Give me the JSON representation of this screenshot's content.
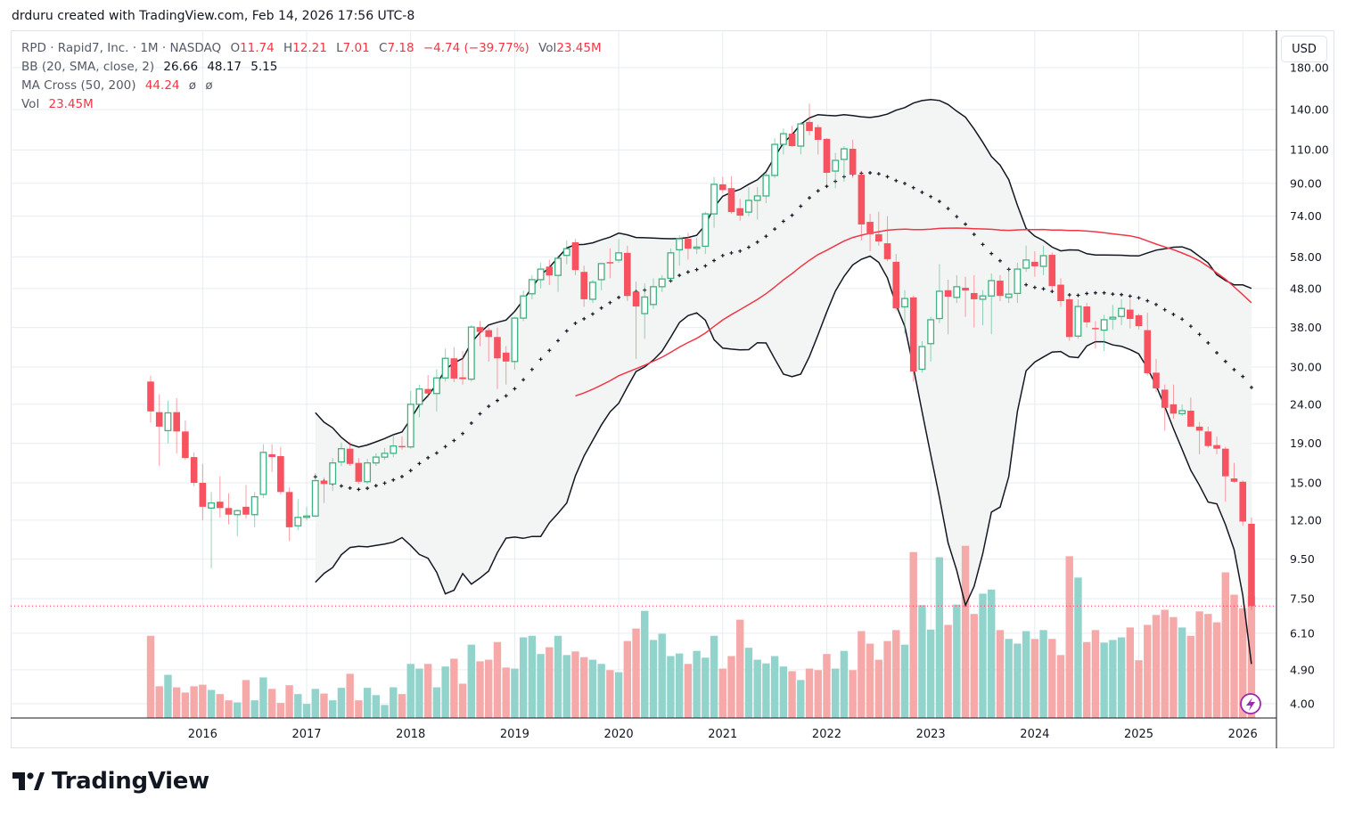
{
  "credit": "drduru created with TradingView.com, Feb 14, 2026 17:56 UTC-8",
  "currency_button": "USD",
  "logo_text": "TradingView",
  "legend": {
    "symbol": "RPD · Rapid7, Inc. · 1M · NASDAQ",
    "o_label": "O",
    "o_value": "11.74",
    "h_label": "H",
    "h_value": "12.21",
    "l_label": "L",
    "l_value": "7.01",
    "c_label": "C",
    "c_value": "7.18",
    "change": "−4.74 (−39.77%)",
    "vol_label": "Vol",
    "vol_value": "23.45M",
    "bb_label": "BB (20, SMA, close, 2)",
    "bb_values": [
      "26.66",
      "48.17",
      "5.15"
    ],
    "ma_label": "MA Cross (50, 200)",
    "ma_values": [
      "44.24",
      "ø",
      "ø"
    ],
    "vol_row_label": "Vol",
    "vol_row_value": "23.45M"
  },
  "colors": {
    "up": "#3fb27f",
    "down": "#f7525f",
    "vol_up": "#92d3cc",
    "vol_down": "#f6a9a9",
    "bb": "#131722",
    "bb_fill": "#f3f4f4",
    "ma50": "#f23645",
    "grid": "#e6ecf2"
  },
  "chart_data": {
    "type": "candlestick",
    "interval": "1M",
    "scale": "log",
    "ylim": [
      4.0,
      180.0
    ],
    "y_ticks": [
      "4.00",
      "4.90",
      "6.10",
      "7.50",
      "9.50",
      "12.00",
      "15.00",
      "19.00",
      "24.00",
      "30.00",
      "38.00",
      "48.00",
      "58.00",
      "74.00",
      "90.00",
      "110.00",
      "140.00",
      "180.00"
    ],
    "x_ticks": [
      {
        "label": "2016",
        "index": 6
      },
      {
        "label": "2017",
        "index": 18
      },
      {
        "label": "2018",
        "index": 30
      },
      {
        "label": "2019",
        "index": 42
      },
      {
        "label": "2020",
        "index": 54
      },
      {
        "label": "2021",
        "index": 66
      },
      {
        "label": "2022",
        "index": 78
      },
      {
        "label": "2023",
        "index": 90
      },
      {
        "label": "2024",
        "index": 102
      },
      {
        "label": "2025",
        "index": 114
      },
      {
        "label": "2026",
        "index": 126
      }
    ],
    "last_close": 7.18,
    "bb_period": 20,
    "bb_mult": 2,
    "ma_period": 50,
    "ohlc": [
      [
        27.5,
        28.5,
        21.5,
        23.0
      ],
      [
        22.9,
        25.5,
        16.6,
        21.0
      ],
      [
        20.5,
        24.5,
        19.0,
        22.8
      ],
      [
        22.9,
        24.9,
        17.9,
        20.4
      ],
      [
        20.4,
        21.8,
        17.2,
        17.4
      ],
      [
        17.5,
        18.0,
        14.7,
        15.0
      ],
      [
        15.0,
        16.8,
        12.0,
        13.0
      ],
      [
        12.9,
        14.2,
        9.0,
        13.3
      ],
      [
        13.4,
        15.6,
        12.2,
        12.9
      ],
      [
        12.9,
        14.1,
        11.7,
        12.4
      ],
      [
        12.4,
        12.8,
        10.9,
        12.7
      ],
      [
        13.0,
        14.8,
        12.1,
        12.4
      ],
      [
        12.4,
        14.2,
        11.5,
        13.8
      ],
      [
        14.0,
        18.9,
        13.7,
        18.0
      ],
      [
        17.8,
        18.9,
        16.0,
        17.5
      ],
      [
        17.6,
        18.6,
        14.0,
        14.2
      ],
      [
        14.2,
        14.6,
        10.6,
        11.5
      ],
      [
        11.6,
        13.6,
        11.3,
        12.2
      ],
      [
        12.2,
        13.0,
        12.0,
        12.3
      ],
      [
        12.3,
        15.9,
        12.2,
        15.2
      ],
      [
        15.2,
        15.5,
        13.3,
        14.9
      ],
      [
        14.9,
        17.4,
        14.3,
        16.9
      ],
      [
        17.0,
        19.1,
        16.6,
        18.4
      ],
      [
        18.4,
        19.2,
        16.6,
        16.8
      ],
      [
        16.9,
        17.4,
        14.9,
        15.1
      ],
      [
        15.1,
        17.3,
        14.9,
        16.9
      ],
      [
        16.9,
        17.9,
        16.6,
        17.5
      ],
      [
        17.5,
        18.5,
        17.2,
        17.9
      ],
      [
        17.9,
        20.0,
        17.5,
        18.7
      ],
      [
        18.7,
        19.8,
        18.3,
        18.6
      ],
      [
        18.6,
        26.0,
        18.4,
        24.0
      ],
      [
        24.0,
        27.0,
        22.2,
        26.3
      ],
      [
        26.3,
        28.6,
        25.0,
        25.6
      ],
      [
        25.6,
        29.6,
        23.0,
        28.1
      ],
      [
        28.1,
        33.5,
        27.5,
        31.6
      ],
      [
        31.6,
        33.8,
        27.4,
        28.0
      ],
      [
        28.2,
        33.0,
        27.0,
        27.9
      ],
      [
        27.9,
        38.5,
        27.5,
        38.1
      ],
      [
        38.1,
        39.5,
        34.0,
        37.0
      ],
      [
        37.4,
        38.0,
        31.0,
        35.9
      ],
      [
        35.9,
        38.0,
        26.3,
        31.6
      ],
      [
        32.7,
        34.0,
        27.0,
        31.0
      ],
      [
        31.0,
        40.5,
        29.5,
        40.2
      ],
      [
        40.2,
        47.4,
        39.5,
        45.9
      ],
      [
        46.5,
        52.0,
        45.0,
        50.6
      ],
      [
        50.6,
        56.0,
        48.0,
        53.9
      ],
      [
        54.7,
        57.0,
        49.0,
        51.9
      ],
      [
        51.9,
        58.5,
        47.0,
        57.5
      ],
      [
        58.5,
        64.0,
        55.5,
        60.9
      ],
      [
        63.3,
        64.5,
        52.0,
        53.6
      ],
      [
        53.0,
        55.0,
        43.0,
        45.0
      ],
      [
        45.0,
        50.5,
        44.0,
        49.8
      ],
      [
        50.6,
        56.0,
        47.5,
        55.7
      ],
      [
        56.2,
        61.0,
        51.0,
        56.0
      ],
      [
        56.9,
        64.5,
        56.0,
        59.4
      ],
      [
        59.4,
        62.0,
        44.5,
        45.9
      ],
      [
        47.1,
        50.0,
        31.5,
        43.1
      ],
      [
        41.3,
        49.5,
        35.5,
        45.6
      ],
      [
        43.6,
        51.0,
        42.5,
        48.5
      ],
      [
        48.5,
        52.0,
        47.0,
        50.8
      ],
      [
        51.0,
        61.0,
        50.0,
        59.4
      ],
      [
        60.5,
        66.0,
        55.0,
        64.6
      ],
      [
        64.6,
        67.0,
        57.0,
        60.9
      ],
      [
        61.0,
        65.0,
        59.0,
        61.5
      ],
      [
        61.8,
        76.0,
        59.0,
        75.0
      ],
      [
        75.0,
        93.5,
        69.0,
        89.5
      ],
      [
        89.5,
        93.5,
        85.0,
        86.5
      ],
      [
        87.5,
        94.0,
        75.0,
        75.8
      ],
      [
        77.6,
        82.0,
        72.0,
        74.2
      ],
      [
        75.8,
        88.0,
        74.0,
        81.3
      ],
      [
        81.3,
        88.0,
        72.5,
        83.5
      ],
      [
        83.5,
        96.0,
        80.0,
        94.4
      ],
      [
        94.4,
        118.0,
        93.0,
        113.7
      ],
      [
        113.7,
        125.0,
        107.0,
        121.2
      ],
      [
        121.2,
        127.0,
        112.0,
        112.5
      ],
      [
        112.5,
        130.0,
        107.0,
        128.5
      ],
      [
        130.0,
        145.0,
        120.0,
        123.2
      ],
      [
        126.0,
        128.0,
        107.0,
        116.8
      ],
      [
        117.5,
        118.0,
        89.0,
        95.9
      ],
      [
        96.9,
        108.0,
        87.4,
        103.3
      ],
      [
        103.9,
        112.5,
        91.0,
        110.7
      ],
      [
        110.7,
        117.0,
        93.0,
        94.8
      ],
      [
        94.8,
        97.0,
        64.0,
        70.4
      ],
      [
        71.5,
        75.0,
        60.0,
        66.4
      ],
      [
        66.4,
        76.0,
        62.0,
        63.6
      ],
      [
        62.9,
        74.0,
        56.5,
        57.2
      ],
      [
        56.3,
        59.0,
        42.0,
        42.6
      ],
      [
        43.0,
        47.5,
        36.5,
        45.2
      ],
      [
        45.5,
        46.0,
        27.5,
        29.2
      ],
      [
        29.6,
        35.0,
        29.0,
        33.9
      ],
      [
        34.5,
        40.5,
        31.0,
        39.8
      ],
      [
        40.1,
        55.5,
        39.0,
        47.2
      ],
      [
        47.5,
        50.6,
        36.5,
        45.7
      ],
      [
        45.5,
        52.0,
        44.0,
        48.5
      ],
      [
        48.2,
        51.5,
        40.5,
        47.4
      ],
      [
        46.7,
        52.0,
        38.0,
        45.0
      ],
      [
        45.0,
        47.5,
        38.5,
        45.9
      ],
      [
        45.9,
        52.5,
        36.5,
        50.3
      ],
      [
        50.3,
        52.0,
        44.5,
        45.9
      ],
      [
        45.5,
        54.0,
        44.0,
        46.4
      ],
      [
        46.6,
        56.0,
        44.0,
        53.9
      ],
      [
        54.2,
        62.0,
        53.0,
        56.9
      ],
      [
        56.3,
        60.0,
        51.5,
        54.8
      ],
      [
        54.8,
        62.0,
        52.0,
        58.4
      ],
      [
        58.7,
        59.5,
        47.5,
        48.7
      ],
      [
        49.1,
        51.0,
        43.0,
        44.5
      ],
      [
        45.0,
        46.0,
        35.1,
        35.9
      ],
      [
        36.1,
        45.0,
        35.5,
        43.1
      ],
      [
        43.1,
        44.0,
        38.0,
        39.2
      ],
      [
        37.9,
        39.5,
        33.5,
        37.7
      ],
      [
        37.4,
        41.0,
        33.0,
        39.8
      ],
      [
        40.0,
        43.5,
        37.5,
        40.4
      ],
      [
        40.6,
        45.0,
        38.5,
        42.6
      ],
      [
        42.3,
        45.0,
        37.8,
        40.0
      ],
      [
        40.9,
        41.3,
        37.5,
        38.3
      ],
      [
        37.4,
        41.5,
        28.5,
        28.9
      ],
      [
        29.0,
        31.5,
        25.8,
        26.4
      ],
      [
        26.2,
        27.0,
        20.5,
        23.5
      ],
      [
        24.0,
        27.0,
        22.0,
        22.7
      ],
      [
        22.7,
        24.0,
        22.4,
        23.1
      ],
      [
        23.1,
        25.0,
        21.0,
        21.0
      ],
      [
        21.0,
        21.6,
        17.8,
        20.5
      ],
      [
        20.4,
        21.0,
        18.5,
        18.7
      ],
      [
        18.8,
        19.8,
        17.8,
        18.4
      ],
      [
        18.4,
        18.6,
        13.4,
        15.6
      ],
      [
        15.4,
        16.9,
        15.0,
        15.1
      ],
      [
        15.1,
        15.2,
        11.6,
        11.9
      ],
      [
        11.74,
        12.21,
        7.01,
        7.18
      ]
    ],
    "volume_millions": [
      15.8,
      6.1,
      8.3,
      5.9,
      4.9,
      6.1,
      6.4,
      5.4,
      4.6,
      3.4,
      3.0,
      7.3,
      3.4,
      7.8,
      5.6,
      2.9,
      6.3,
      4.6,
      2.7,
      5.6,
      4.7,
      3.4,
      5.8,
      8.5,
      3.4,
      5.8,
      4.4,
      2.5,
      5.9,
      4.6,
      10.4,
      9.5,
      10.4,
      5.9,
      9.9,
      11.4,
      6.6,
      14.1,
      10.9,
      11.2,
      14.6,
      9.7,
      9.5,
      15.5,
      15.8,
      12.3,
      13.6,
      15.8,
      12.1,
      12.8,
      11.7,
      11.2,
      10.4,
      9.2,
      8.8,
      14.8,
      17.2,
      20.6,
      15.0,
      16.2,
      11.9,
      12.4,
      10.4,
      12.9,
      11.6,
      15.8,
      9.5,
      11.9,
      18.9,
      13.5,
      11.2,
      10.5,
      11.9,
      9.9,
      9.0,
      7.3,
      9.5,
      9.2,
      12.3,
      9.5,
      12.9,
      9.2,
      16.7,
      14.3,
      11.2,
      14.8,
      16.9,
      14.1,
      31.9,
      21.7,
      17.0,
      30.9,
      17.9,
      21.8,
      33.1,
      20.0,
      23.9,
      24.7,
      16.9,
      15.2,
      14.3,
      16.7,
      15.2,
      16.9,
      15.2,
      12.1,
      31.1,
      27.0,
      14.6,
      16.9,
      14.5,
      15.0,
      15.5,
      17.4,
      11.1,
      17.9,
      19.8,
      20.8,
      19.4,
      17.4,
      15.8,
      20.5,
      20.0,
      18.4,
      28.0,
      23.7,
      21.1,
      23.45
    ]
  }
}
